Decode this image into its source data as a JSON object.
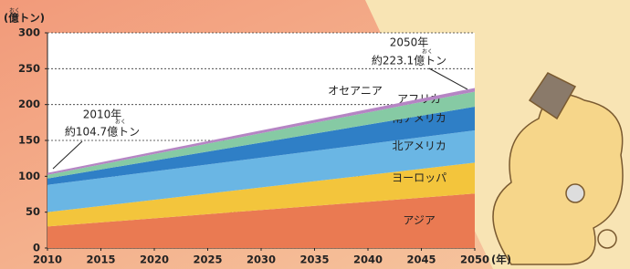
{
  "chart_data": {
    "type": "stacked-area",
    "y_label": "(億トン)",
    "x_label": "(年)",
    "x": [
      2010,
      2050
    ],
    "series": [
      {
        "name": "アジア",
        "color": "#ea7a52",
        "values": [
          30,
          76
        ]
      },
      {
        "name": "ヨーロッパ",
        "color": "#f3c53c",
        "values": [
          20,
          43
        ]
      },
      {
        "name": "北アメリカ",
        "color": "#6ab6e4",
        "values": [
          38,
          45
        ]
      },
      {
        "name": "南アメリカ",
        "color": "#2f7fc6",
        "values": [
          9,
          33
        ]
      },
      {
        "name": "アフリカ",
        "color": "#86caa4",
        "values": [
          5,
          21
        ]
      },
      {
        "name": "オセアニア",
        "color": "#b585c4",
        "values": [
          2.7,
          5.1
        ]
      }
    ],
    "xlim": [
      2010,
      2050
    ],
    "ylim": [
      0,
      300
    ],
    "xticks": [
      2010,
      2015,
      2020,
      2025,
      2030,
      2035,
      2040,
      2045,
      2050
    ],
    "yticks": [
      0,
      50,
      100,
      150,
      200,
      250,
      300
    ],
    "grid": true,
    "annotations": [
      "2010年",
      "約104.7億トン",
      "2050年",
      "約223.1億トン"
    ],
    "ruby": "おく"
  }
}
